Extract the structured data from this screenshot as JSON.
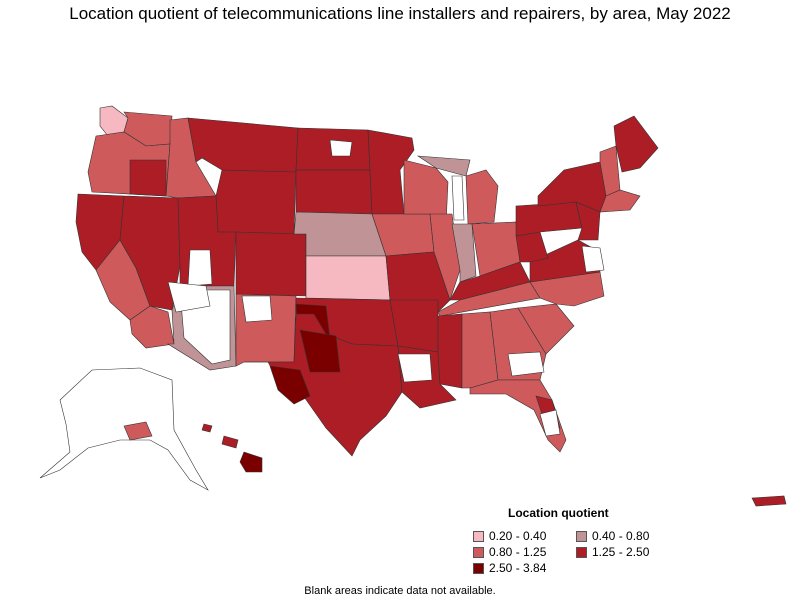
{
  "title": "Location quotient of telecommunications line installers and repairers, by area, May 2022",
  "legend": {
    "title": "Location quotient",
    "items": [
      {
        "label": "0.20 - 0.40",
        "color": "#f6b9c2"
      },
      {
        "label": "0.40 - 0.80",
        "color": "#c09497"
      },
      {
        "label": "0.80 - 1.25",
        "color": "#cf5a5c"
      },
      {
        "label": "1.25 - 2.50",
        "color": "#ad1d26"
      },
      {
        "label": "2.50 - 3.84",
        "color": "#7a0000"
      }
    ]
  },
  "footnote": "Blank areas indicate data not available.",
  "colors": {
    "c1": "#f6b9c2",
    "c2": "#c09497",
    "c3": "#cf5a5c",
    "c4": "#ad1d26",
    "c5": "#7a0000",
    "blank": "#ffffff",
    "border": "#333333"
  }
}
